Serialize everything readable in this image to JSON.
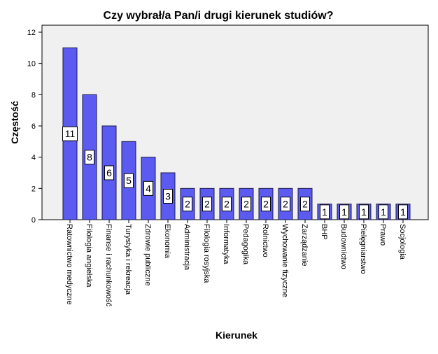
{
  "chart_data": {
    "type": "bar",
    "title": "Czy wybrał/a Pan/i drugi kierunek studiów?",
    "xlabel": "Kierunek",
    "ylabel": "Częstość",
    "ylim": [
      0,
      12
    ],
    "yticks": [
      0,
      2,
      4,
      6,
      8,
      10,
      12
    ],
    "grid": false,
    "legend": "none",
    "colors": {
      "bar_fill": "#5b5bf2",
      "bar_stroke": "#1a1a4d",
      "plot_background": "#f0f0f0",
      "frame": "#000000",
      "label_box": "#ffffff"
    },
    "categories": [
      "Ratownictwo medyczne",
      "Filologia angielska",
      "Finanse i rachunkowość",
      "Turystyka i rekreacja",
      "Zdrowie publiczne",
      "Ekonomia",
      "Administracja",
      "Filologia rosyjska",
      "Informatyka",
      "Pedagogika",
      "Rolnictwo",
      "Wychowanie fizyczne",
      "Zarządzanie",
      "BHP",
      "Budownictwo",
      "Pielęgniarstwo",
      "Prawo",
      "Socjologia"
    ],
    "values": [
      11,
      8,
      6,
      5,
      4,
      3,
      2,
      2,
      2,
      2,
      2,
      2,
      2,
      1,
      1,
      1,
      1,
      1
    ]
  }
}
